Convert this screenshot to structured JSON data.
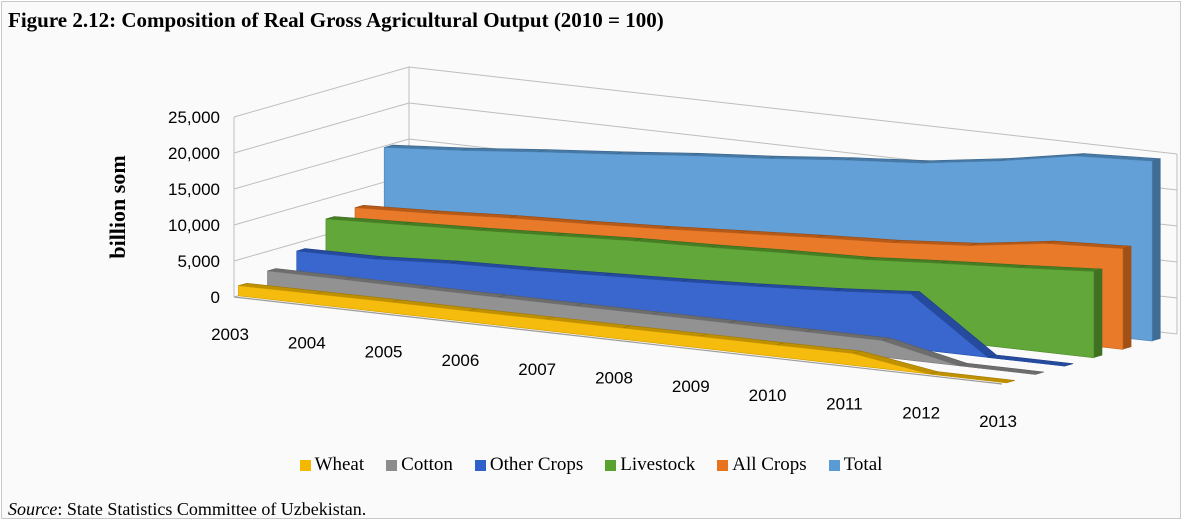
{
  "figure": {
    "title": "Figure 2.12: Composition of Real Gross Agricultural Output (2010 = 100)",
    "source_label": "Source",
    "source_text": ": State Statistics Committee of Uzbekistan."
  },
  "chart_data": {
    "type": "area",
    "variant": "3d-area",
    "title": "",
    "xlabel": "",
    "ylabel": "billion som",
    "ylim": [
      0,
      25000
    ],
    "yticks": [
      "0",
      "5,000",
      "10,000",
      "15,000",
      "20,000",
      "25,000"
    ],
    "categories": [
      "2003",
      "2004",
      "2005",
      "2006",
      "2007",
      "2008",
      "2009",
      "2010",
      "2011",
      "2012",
      "2013"
    ],
    "legend_position": "bottom",
    "grid": true,
    "series": [
      {
        "name": "Wheat",
        "color": "#F5B800",
        "values": [
          1400,
          1450,
          1500,
          1500,
          1550,
          1550,
          1600,
          1600,
          1650,
          0,
          0
        ]
      },
      {
        "name": "Cotton",
        "color": "#8C8C8C",
        "values": [
          2300,
          2300,
          2250,
          2250,
          2250,
          2300,
          2300,
          2300,
          2300,
          0,
          0
        ]
      },
      {
        "name": "Other Crops",
        "color": "#2F5FCB",
        "values": [
          3900,
          4000,
          4600,
          4900,
          5300,
          5700,
          6200,
          6800,
          7600,
          0,
          0
        ]
      },
      {
        "name": "Livestock",
        "color": "#5AA22F",
        "values": [
          7200,
          7600,
          8000,
          8500,
          9000,
          9300,
          9700,
          10000,
          10700,
          11300,
          12000
        ]
      },
      {
        "name": "All Crops",
        "color": "#E8731F",
        "values": [
          7600,
          8000,
          8600,
          9000,
          9500,
          10100,
          10700,
          11200,
          12000,
          13500,
          14000
        ]
      },
      {
        "name": "Total",
        "color": "#5B9BD5",
        "values": [
          14800,
          15600,
          16600,
          17500,
          18500,
          19300,
          20300,
          21100,
          22600,
          24500,
          25000
        ]
      }
    ]
  }
}
